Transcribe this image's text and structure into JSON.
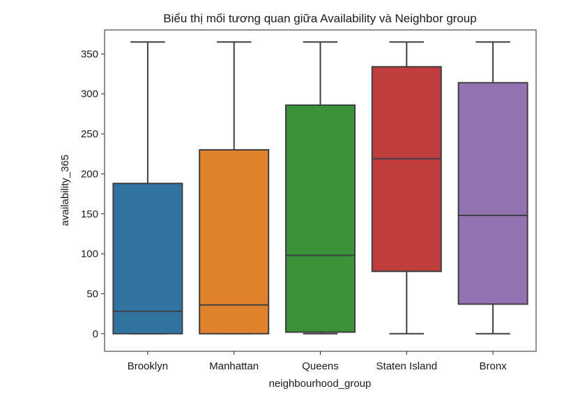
{
  "chart_data": {
    "type": "box",
    "title": "Biểu thị mối tương quan giữa Availability và Neighbor group",
    "xlabel": "neighbourhood_group",
    "ylabel": "availability_365",
    "ylim": [
      -22,
      380
    ],
    "yticks": [
      0,
      50,
      100,
      150,
      200,
      250,
      300,
      350
    ],
    "grid": false,
    "categories": [
      "Brooklyn",
      "Manhattan",
      "Queens",
      "Staten Island",
      "Bronx"
    ],
    "boxes": [
      {
        "category": "Brooklyn",
        "whisker_low": 0,
        "q1": 0,
        "median": 28,
        "q3": 188,
        "whisker_high": 365,
        "color": "#3274a1"
      },
      {
        "category": "Manhattan",
        "whisker_low": 0,
        "q1": 0,
        "median": 36,
        "q3": 230,
        "whisker_high": 365,
        "color": "#e1812c"
      },
      {
        "category": "Queens",
        "whisker_low": 0,
        "q1": 2,
        "median": 98,
        "q3": 286,
        "whisker_high": 365,
        "color": "#3a923a"
      },
      {
        "category": "Staten Island",
        "whisker_low": 0,
        "q1": 78,
        "median": 219,
        "q3": 334,
        "whisker_high": 365,
        "color": "#c03d3e"
      },
      {
        "category": "Bronx",
        "whisker_low": 0,
        "q1": 37,
        "median": 148,
        "q3": 314,
        "whisker_high": 365,
        "color": "#9372b2"
      }
    ]
  }
}
